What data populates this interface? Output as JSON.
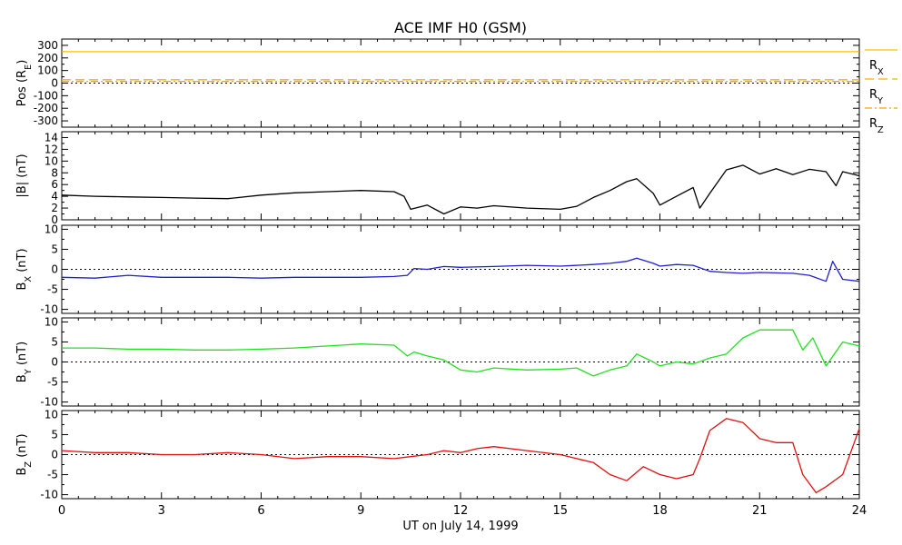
{
  "title": "ACE IMF H0 (GSM)",
  "xlabel": "UT on July 14, 1999",
  "x_ticks": [
    "0",
    "3",
    "6",
    "9",
    "12",
    "15",
    "18",
    "21",
    "24"
  ],
  "chart_data": [
    {
      "type": "line",
      "ylabel": "Pos (R_E)",
      "ylim": [
        -350,
        350
      ],
      "yticks": [
        300,
        200,
        100,
        0,
        -100,
        -200,
        -300
      ],
      "x_range_hours": [
        0,
        24
      ],
      "zero_line": true,
      "legend_placement": "right",
      "series": [
        {
          "name": "R_X",
          "color": "#ffc000",
          "dash": "solid",
          "x": [
            0,
            24
          ],
          "values": [
            250,
            250
          ]
        },
        {
          "name": "R_Y",
          "color": "#ffb000",
          "dash": "long-dash",
          "x": [
            0,
            24
          ],
          "values": [
            27,
            27
          ]
        },
        {
          "name": "R_Z",
          "color": "#ffa000",
          "dash": "dash-dot",
          "x": [
            0,
            24
          ],
          "values": [
            14,
            14
          ]
        }
      ]
    },
    {
      "type": "line",
      "ylabel": "|B| (nT)",
      "ylim": [
        0,
        15
      ],
      "yticks": [
        14,
        12,
        10,
        8,
        6,
        4,
        2,
        0
      ],
      "x_range_hours": [
        0,
        24
      ],
      "zero_line": false,
      "series": [
        {
          "name": "",
          "color": "#000000",
          "x": [
            0,
            1,
            2,
            3,
            4,
            5,
            6,
            7,
            8,
            9,
            10,
            10.3,
            10.5,
            11,
            11.5,
            12,
            12.5,
            13,
            14,
            15,
            15.5,
            16,
            16.5,
            17,
            17.3,
            17.8,
            18,
            18.5,
            19,
            19.2,
            19.5,
            20,
            20.5,
            21,
            21.5,
            22,
            22.5,
            23,
            23.3,
            23.5,
            24
          ],
          "values": [
            4.2,
            4.0,
            3.9,
            3.8,
            3.7,
            3.6,
            4.2,
            4.6,
            4.8,
            5.0,
            4.8,
            4.0,
            1.8,
            2.5,
            1.0,
            2.2,
            2.0,
            2.4,
            2.0,
            1.8,
            2.3,
            3.8,
            5.0,
            6.5,
            7.0,
            4.5,
            2.5,
            4.0,
            5.5,
            2.0,
            4.5,
            8.5,
            9.3,
            7.8,
            8.7,
            7.7,
            8.6,
            8.2,
            5.8,
            8.2,
            7.5
          ]
        }
      ]
    },
    {
      "type": "line",
      "ylabel": "B_X (nT)",
      "ylim": [
        -11,
        11
      ],
      "yticks": [
        10,
        5,
        0,
        -5,
        -10
      ],
      "x_range_hours": [
        0,
        24
      ],
      "zero_line": true,
      "series": [
        {
          "name": "",
          "color": "#2020d0",
          "x": [
            0,
            1,
            2,
            3,
            4,
            5,
            6,
            7,
            8,
            9,
            10,
            10.4,
            10.6,
            11,
            11.5,
            12,
            13,
            14,
            15,
            16,
            16.5,
            17,
            17.3,
            17.8,
            18,
            18.5,
            19,
            19.5,
            20,
            20.5,
            21,
            22,
            22.5,
            23,
            23.2,
            23.5,
            24
          ],
          "values": [
            -2.0,
            -2.2,
            -1.5,
            -2.0,
            -2.0,
            -2.0,
            -2.2,
            -2.0,
            -2.0,
            -2.0,
            -1.8,
            -1.5,
            0.2,
            0,
            0.7,
            0.5,
            0.7,
            1.0,
            0.8,
            1.2,
            1.5,
            2.0,
            2.8,
            1.5,
            0.8,
            1.2,
            1.0,
            -0.5,
            -0.8,
            -1.0,
            -0.8,
            -1.0,
            -1.5,
            -3.0,
            2.0,
            -2.5,
            -3.0
          ]
        }
      ]
    },
    {
      "type": "line",
      "ylabel": "B_Y (nT)",
      "ylim": [
        -11,
        11
      ],
      "yticks": [
        10,
        5,
        0,
        -5,
        -10
      ],
      "x_range_hours": [
        0,
        24
      ],
      "zero_line": true,
      "series": [
        {
          "name": "",
          "color": "#20e020",
          "x": [
            0,
            1,
            2,
            3,
            4,
            5,
            6,
            7,
            8,
            9,
            10,
            10.4,
            10.6,
            11,
            11.5,
            12,
            12.5,
            13,
            14,
            15,
            15.5,
            16,
            16.5,
            17,
            17.3,
            17.8,
            18,
            18.5,
            19,
            19.5,
            20,
            20.5,
            21,
            22,
            22.3,
            22.6,
            23,
            23.5,
            24
          ],
          "values": [
            3.5,
            3.5,
            3.2,
            3.2,
            3.0,
            3.0,
            3.2,
            3.5,
            4.0,
            4.5,
            4.2,
            1.5,
            2.5,
            1.5,
            0.5,
            -2.0,
            -2.5,
            -1.5,
            -2.0,
            -1.8,
            -1.5,
            -3.5,
            -2.0,
            -1.0,
            2.0,
            0,
            -1.0,
            0,
            -0.5,
            1.0,
            2.0,
            6.0,
            8.0,
            8.0,
            3.0,
            6.0,
            -1.0,
            5.0,
            4.0
          ]
        }
      ]
    },
    {
      "type": "line",
      "ylabel": "B_Z (nT)",
      "ylim": [
        -11,
        11
      ],
      "yticks": [
        10,
        5,
        0,
        -5,
        -10
      ],
      "x_range_hours": [
        0,
        24
      ],
      "zero_line": true,
      "series": [
        {
          "name": "",
          "color": "#e01010",
          "x": [
            0,
            1,
            2,
            3,
            4,
            5,
            6,
            7,
            8,
            9,
            10,
            10.5,
            11,
            11.5,
            12,
            12.5,
            13,
            14,
            15,
            15.5,
            16,
            16.5,
            17,
            17.5,
            18,
            18.5,
            19,
            19.2,
            19.5,
            20,
            20.5,
            21,
            21.5,
            22,
            22.3,
            22.7,
            23,
            23.5,
            24
          ],
          "values": [
            1.0,
            0.5,
            0.5,
            0,
            0,
            0.5,
            0,
            -1.0,
            -0.5,
            -0.5,
            -1.0,
            -0.5,
            0,
            1.0,
            0.5,
            1.5,
            2.0,
            1.0,
            0,
            -1.0,
            -2.0,
            -5.0,
            -6.5,
            -3.0,
            -5.0,
            -6.0,
            -5.0,
            -1.0,
            6.0,
            9.0,
            8.0,
            4.0,
            3.0,
            3.0,
            -5.0,
            -9.5,
            -8.0,
            -5.0,
            6.5
          ]
        }
      ]
    }
  ]
}
